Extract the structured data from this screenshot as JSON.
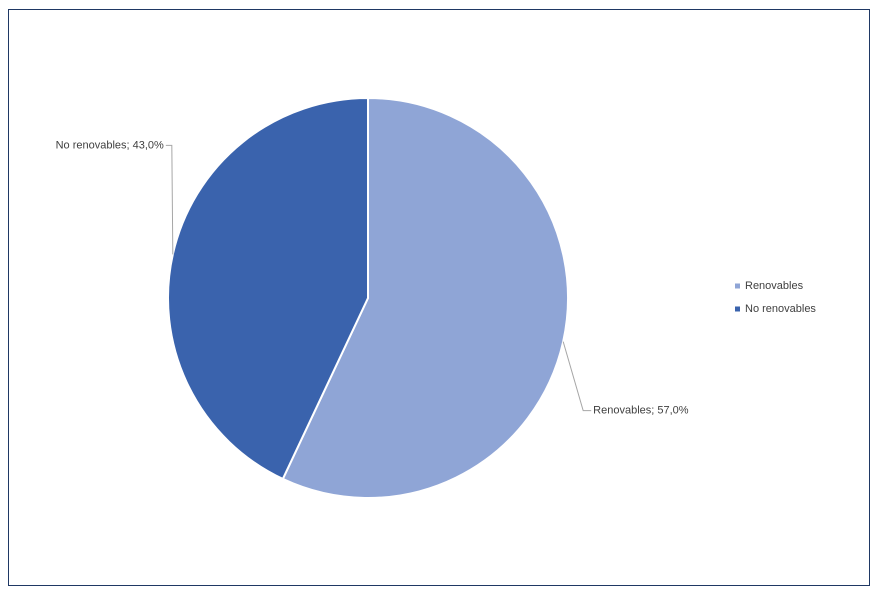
{
  "chart_data": {
    "type": "pie",
    "categories": [
      "Renovables",
      "No renovables"
    ],
    "values": [
      57.0,
      43.0
    ],
    "value_labels": [
      "Renovables; 57,0%",
      "No renovables; 43,0%"
    ],
    "colors": [
      "#8fa5d6",
      "#3a63ad"
    ],
    "legend": "right"
  }
}
